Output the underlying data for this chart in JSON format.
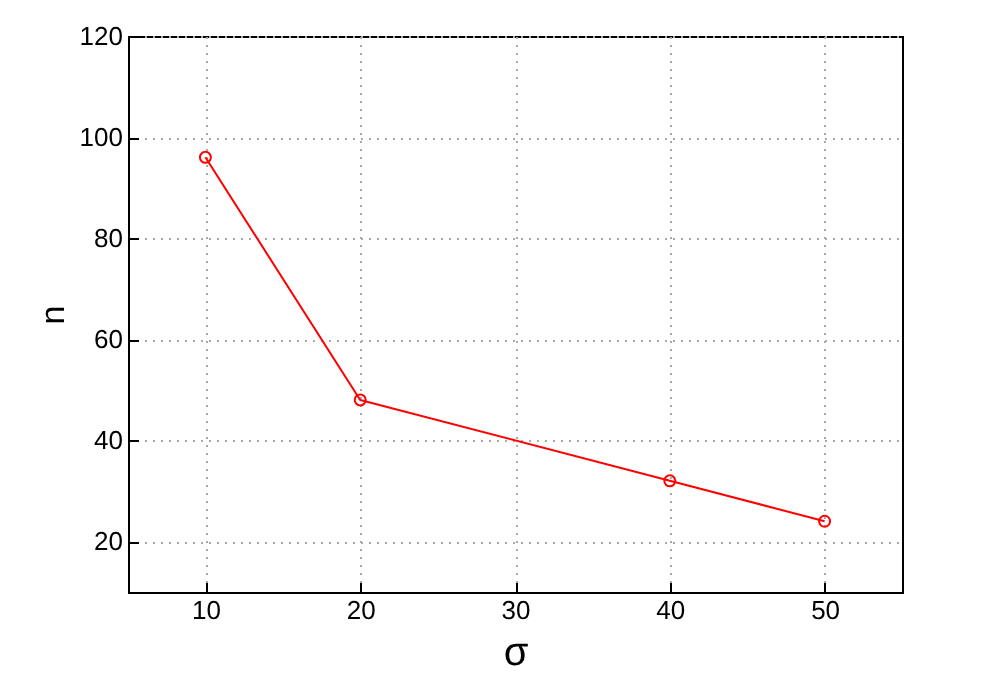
{
  "chart_data": {
    "type": "line",
    "xlabel": "σ",
    "ylabel": "n",
    "x": [
      10,
      20,
      40,
      50
    ],
    "series": [
      {
        "color": "#ff0000",
        "values": [
          96,
          48,
          32,
          24
        ]
      }
    ],
    "xlim": [
      5,
      55
    ],
    "xticks": [
      10,
      20,
      30,
      40,
      50
    ],
    "ylim": [
      10,
      120
    ],
    "yticks": [
      20,
      40,
      60,
      80,
      100,
      120
    ],
    "grid": true,
    "marker": "circle",
    "line_style": "solid"
  }
}
